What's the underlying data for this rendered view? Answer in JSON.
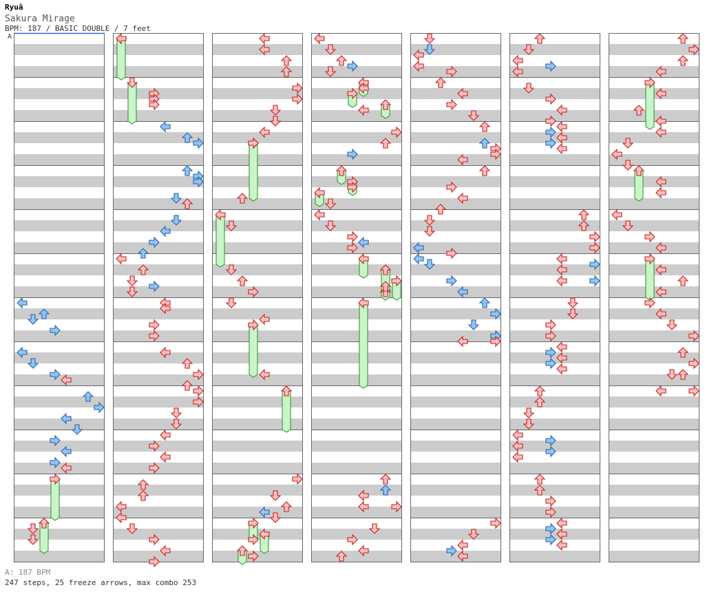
{
  "header": {
    "artist": "Ryuâ",
    "title": "Sakura Mirage",
    "info": "BPM: 187 / BASIC DOUBLE / 7 feet",
    "bpm_marker": "A"
  },
  "footer": {
    "bpm_legend": "A: 187 BPM",
    "stats": "247 steps, 25 freeze arrows, max combo 253"
  },
  "colors": {
    "row_gray": "#cccccc",
    "row_white": "#ffffff",
    "border": "#666666",
    "arrow_red_fill": "#ffc0c0",
    "arrow_red_stroke": "#c02020",
    "arrow_blue_fill": "#8fc6f5",
    "arrow_blue_stroke": "#2a5fa8",
    "freeze_fill": "#c9f5c9",
    "freeze_stroke": "#2a8a2a",
    "bpm_line": "#3366cc"
  },
  "chart_data": {
    "type": "step-chart",
    "style": "double",
    "panels_per_side": [
      "left",
      "down",
      "up",
      "right"
    ],
    "measures_per_column": 12,
    "columns": 7,
    "notes": [
      [
        1,
        0,
        1,
        "r"
      ],
      [
        1,
        0,
        2,
        "r"
      ],
      [
        1,
        1,
        0,
        "r"
      ],
      [
        1,
        1,
        1,
        "r"
      ],
      [
        1,
        1,
        2,
        "r"
      ],
      [
        1,
        1,
        3,
        "r"
      ],
      [
        1,
        1,
        4,
        "b"
      ],
      [
        1,
        1,
        5,
        "b"
      ],
      [
        1,
        2,
        0,
        "b"
      ],
      [
        1,
        2,
        1,
        "b"
      ],
      [
        1,
        2,
        2,
        "b"
      ],
      [
        1,
        2,
        3,
        "b"
      ],
      [
        1,
        2,
        4,
        "b"
      ],
      [
        1,
        2,
        5,
        "b"
      ],
      [
        1,
        3,
        0,
        "r"
      ],
      [
        1,
        3,
        1,
        "r"
      ],
      [
        1,
        3,
        3,
        "r"
      ]
    ]
  }
}
